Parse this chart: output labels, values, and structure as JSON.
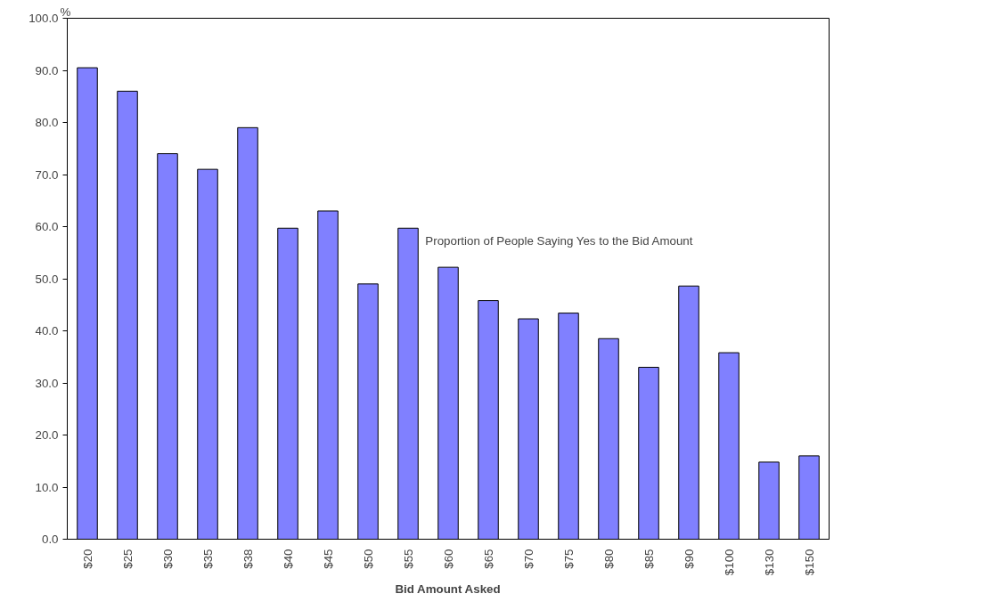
{
  "chart_data": {
    "type": "bar",
    "xlabel": "Bid Amount Asked",
    "ylabel": "%",
    "categories": [
      "$20",
      "$25",
      "$30",
      "$35",
      "$38",
      "$40",
      "$45",
      "$50",
      "$55",
      "$60",
      "$65",
      "$70",
      "$75",
      "$80",
      "$85",
      "$90",
      "$100",
      "$130",
      "$150"
    ],
    "values": [
      90.5,
      86,
      74,
      71,
      79,
      59.7,
      63,
      49,
      59.7,
      52.2,
      45.8,
      42.3,
      43.4,
      38.5,
      33,
      48.6,
      35.8,
      14.8,
      16
    ],
    "color": "#8080ff",
    "ylim": [
      0,
      100
    ],
    "yticks": [
      {
        "value": 0,
        "label": "0.0"
      },
      {
        "value": 10,
        "label": "10.0"
      },
      {
        "value": 20,
        "label": "20.0"
      },
      {
        "value": 30,
        "label": "30.0"
      },
      {
        "value": 40,
        "label": "40.0"
      },
      {
        "value": 50,
        "label": "50.0"
      },
      {
        "value": 60,
        "label": "60.0"
      },
      {
        "value": 70,
        "label": "70.0"
      },
      {
        "value": 80,
        "label": "80.0"
      },
      {
        "value": 90,
        "label": "90.0"
      },
      {
        "value": 100,
        "label": "100.0"
      }
    ],
    "annotations": [
      "Proportion of People Saying Yes to the Bid Amount"
    ],
    "grid": false
  }
}
